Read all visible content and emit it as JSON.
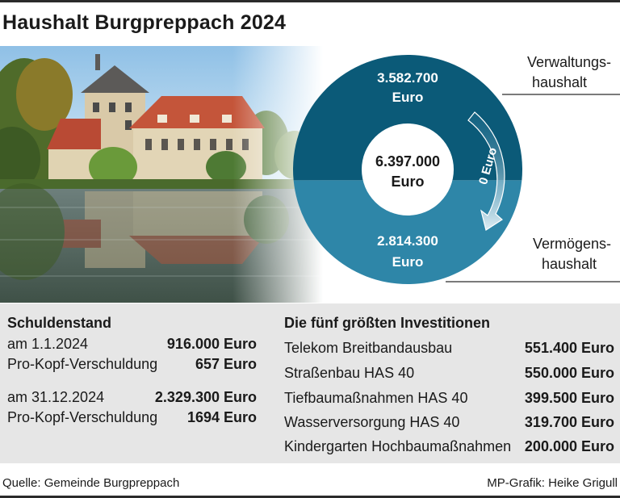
{
  "title": "Haushalt Burgpreppach 2024",
  "chart_data": {
    "type": "pie",
    "center_label": [
      "6.397.000",
      "Euro"
    ],
    "segments": [
      {
        "name": "Verwaltungs-haushalt",
        "value": 3582700,
        "label": [
          "3.582.700",
          "Euro"
        ],
        "color": "#0b5a78",
        "side_label": [
          "Verwaltungs-",
          "haushalt"
        ]
      },
      {
        "name": "Vermögens-haushalt",
        "value": 2814300,
        "label": [
          "2.814.300",
          "Euro"
        ],
        "color": "#2e86a8",
        "side_label": [
          "Vermögens-",
          "haushalt"
        ]
      }
    ],
    "transfer_label": "0 Euro"
  },
  "debt": {
    "heading": "Schuldenstand",
    "rows": [
      {
        "label": "am 1.1.2024",
        "value": "916.000 Euro"
      },
      {
        "label": "Pro-Kopf-Verschuldung",
        "value": "657 Euro"
      },
      {
        "label": "am 31.12.2024",
        "value": "2.329.300 Euro"
      },
      {
        "label": "Pro-Kopf-Verschuldung",
        "value": "1694 Euro"
      }
    ]
  },
  "investments": {
    "heading": "Die fünf größten Investitionen",
    "rows": [
      {
        "label": "Telekom Breitbandausbau",
        "value": "551.400 Euro"
      },
      {
        "label": "Straßenbau HAS 40",
        "value": "550.000 Euro"
      },
      {
        "label": "Tiefbaumaßnahmen HAS 40",
        "value": "399.500 Euro"
      },
      {
        "label": "Wasserversorgung HAS 40",
        "value": "319.700 Euro"
      },
      {
        "label": "Kindergarten Hochbaumaßnahmen",
        "value": "200.000 Euro"
      }
    ]
  },
  "footer": {
    "source": "Quelle: Gemeinde Burgpreppach",
    "credit": "MP-Grafik: Heike Grigull"
  }
}
